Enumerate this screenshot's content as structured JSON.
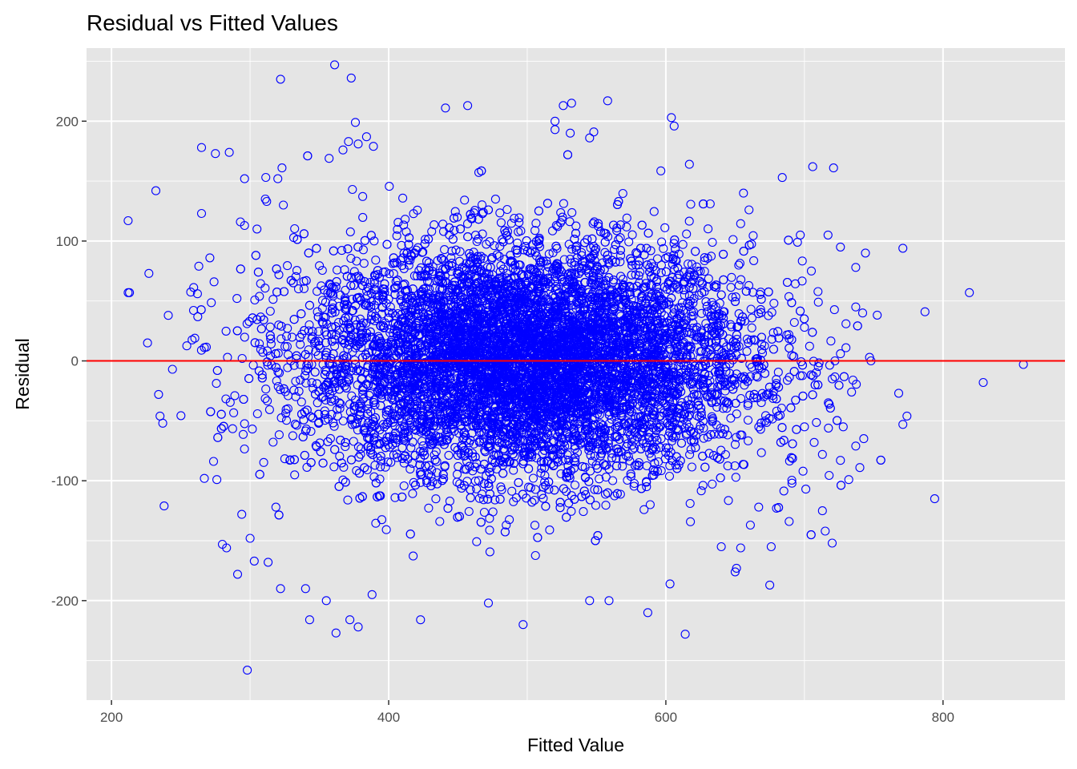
{
  "chart_data": {
    "type": "scatter",
    "title": "Residual vs Fitted Values",
    "xlabel": "Fitted Value",
    "ylabel": "Residual",
    "xlim": [
      182,
      888
    ],
    "ylim": [
      -283,
      261
    ],
    "x_ticks": [
      200,
      400,
      600,
      800
    ],
    "x_tick_labels": [
      "200",
      "400",
      "600",
      "800"
    ],
    "y_ticks": [
      -200,
      -100,
      0,
      100,
      200
    ],
    "y_tick_labels": [
      "-200",
      "-100",
      "0",
      "100",
      "200"
    ],
    "grid": true,
    "panel_background": "#e5e5e5",
    "grid_color": "#ffffff",
    "point_color": "#0000ff",
    "point_style": "open-circle",
    "reference_line": {
      "y": 0,
      "color": "#ff0000"
    },
    "points": [
      {
        "x": 212,
        "y": 117
      },
      {
        "x": 212,
        "y": 57
      },
      {
        "x": 213,
        "y": 57
      },
      {
        "x": 232,
        "y": 142
      },
      {
        "x": 227,
        "y": 73
      },
      {
        "x": 241,
        "y": 38
      },
      {
        "x": 244,
        "y": -7
      },
      {
        "x": 226,
        "y": 15
      },
      {
        "x": 235,
        "y": -46
      },
      {
        "x": 237,
        "y": -52
      },
      {
        "x": 238,
        "y": -121
      },
      {
        "x": 234,
        "y": -28
      },
      {
        "x": 265,
        "y": 178
      },
      {
        "x": 275,
        "y": 173
      },
      {
        "x": 285,
        "y": 174
      },
      {
        "x": 265,
        "y": 123
      },
      {
        "x": 296,
        "y": 152
      },
      {
        "x": 263,
        "y": 79
      },
      {
        "x": 271,
        "y": 86
      },
      {
        "x": 262,
        "y": 56
      },
      {
        "x": 274,
        "y": 66
      },
      {
        "x": 267,
        "y": -98
      },
      {
        "x": 276,
        "y": -99
      },
      {
        "x": 280,
        "y": -153
      },
      {
        "x": 283,
        "y": -156
      },
      {
        "x": 291,
        "y": -178
      },
      {
        "x": 300,
        "y": -148
      },
      {
        "x": 303,
        "y": -167
      },
      {
        "x": 298,
        "y": -258
      },
      {
        "x": 313,
        "y": -168
      },
      {
        "x": 322,
        "y": -190
      },
      {
        "x": 294,
        "y": -128
      },
      {
        "x": 322,
        "y": 235
      },
      {
        "x": 323,
        "y": 161
      },
      {
        "x": 320,
        "y": 152
      },
      {
        "x": 324,
        "y": 130
      },
      {
        "x": 305,
        "y": 110
      },
      {
        "x": 293,
        "y": 116
      },
      {
        "x": 296,
        "y": 113
      },
      {
        "x": 312,
        "y": 133
      },
      {
        "x": 311,
        "y": 135
      },
      {
        "x": 361,
        "y": 247
      },
      {
        "x": 373,
        "y": 236
      },
      {
        "x": 376,
        "y": 199
      },
      {
        "x": 371,
        "y": 183
      },
      {
        "x": 357,
        "y": 169
      },
      {
        "x": 367,
        "y": 176
      },
      {
        "x": 378,
        "y": 181
      },
      {
        "x": 389,
        "y": 179
      },
      {
        "x": 384,
        "y": 187
      },
      {
        "x": 343,
        "y": -216
      },
      {
        "x": 362,
        "y": -227
      },
      {
        "x": 372,
        "y": -216
      },
      {
        "x": 378,
        "y": -222
      },
      {
        "x": 355,
        "y": -200
      },
      {
        "x": 340,
        "y": -190
      },
      {
        "x": 388,
        "y": -195
      },
      {
        "x": 423,
        "y": -216
      },
      {
        "x": 457,
        "y": 213
      },
      {
        "x": 441,
        "y": 211
      },
      {
        "x": 532,
        "y": 215
      },
      {
        "x": 526,
        "y": 213
      },
      {
        "x": 558,
        "y": 217
      },
      {
        "x": 520,
        "y": 200
      },
      {
        "x": 520,
        "y": 193
      },
      {
        "x": 531,
        "y": 190
      },
      {
        "x": 548,
        "y": 191
      },
      {
        "x": 545,
        "y": 186
      },
      {
        "x": 604,
        "y": 203
      },
      {
        "x": 606,
        "y": 196
      },
      {
        "x": 587,
        "y": -210
      },
      {
        "x": 614,
        "y": -228
      },
      {
        "x": 497,
        "y": -220
      },
      {
        "x": 472,
        "y": -202
      },
      {
        "x": 545,
        "y": -200
      },
      {
        "x": 559,
        "y": -200
      },
      {
        "x": 603,
        "y": -186
      },
      {
        "x": 675,
        "y": -187
      },
      {
        "x": 676,
        "y": -155
      },
      {
        "x": 651,
        "y": -173
      },
      {
        "x": 654,
        "y": -156
      },
      {
        "x": 617,
        "y": 164
      },
      {
        "x": 632,
        "y": 131
      },
      {
        "x": 656,
        "y": 140
      },
      {
        "x": 660,
        "y": 126
      },
      {
        "x": 684,
        "y": 153
      },
      {
        "x": 706,
        "y": 162
      },
      {
        "x": 721,
        "y": 161
      },
      {
        "x": 717,
        "y": 105
      },
      {
        "x": 695,
        "y": 99
      },
      {
        "x": 697,
        "y": 105
      },
      {
        "x": 726,
        "y": 95
      },
      {
        "x": 737,
        "y": 78
      },
      {
        "x": 744,
        "y": 90
      },
      {
        "x": 771,
        "y": 94
      },
      {
        "x": 819,
        "y": 57
      },
      {
        "x": 787,
        "y": 41
      },
      {
        "x": 737,
        "y": 45
      },
      {
        "x": 742,
        "y": 40
      },
      {
        "x": 747,
        "y": 3
      },
      {
        "x": 748,
        "y": 0
      },
      {
        "x": 858,
        "y": -3
      },
      {
        "x": 829,
        "y": -18
      },
      {
        "x": 768,
        "y": -27
      },
      {
        "x": 774,
        "y": -46
      },
      {
        "x": 771,
        "y": -53
      },
      {
        "x": 794,
        "y": -115
      },
      {
        "x": 740,
        "y": -89
      },
      {
        "x": 732,
        "y": -99
      },
      {
        "x": 713,
        "y": -125
      },
      {
        "x": 715,
        "y": -142
      },
      {
        "x": 720,
        "y": -152
      },
      {
        "x": 701,
        "y": -107
      },
      {
        "x": 691,
        "y": -102
      },
      {
        "x": 689,
        "y": -134
      },
      {
        "x": 667,
        "y": -122
      },
      {
        "x": 650,
        "y": -176
      },
      {
        "x": 640,
        "y": -155
      },
      {
        "x": 661,
        "y": -137
      },
      {
        "x": 728,
        "y": -55
      },
      {
        "x": 737,
        "y": -71
      },
      {
        "x": 726,
        "y": -83
      },
      {
        "x": 713,
        "y": -78
      },
      {
        "x": 705,
        "y": 75
      },
      {
        "x": 722,
        "y": 0
      },
      {
        "x": 726,
        "y": 6
      },
      {
        "x": 730,
        "y": 11
      },
      {
        "x": 730,
        "y": 31
      },
      {
        "x": 710,
        "y": 49
      },
      {
        "x": 700,
        "y": 28
      },
      {
        "x": 735,
        "y": -16
      },
      {
        "x": 734,
        "y": -26
      },
      {
        "x": 700,
        "y": -55
      },
      {
        "x": 707,
        "y": -68
      },
      {
        "x": 699,
        "y": -92
      }
    ],
    "dense_cloud": {
      "n": 9000,
      "x_mean": 500,
      "x_sd": 80,
      "y_mean": 0,
      "y_sd": 48,
      "x_range": [
        250,
        760
      ],
      "y_range": [
        -190,
        190
      ]
    }
  }
}
